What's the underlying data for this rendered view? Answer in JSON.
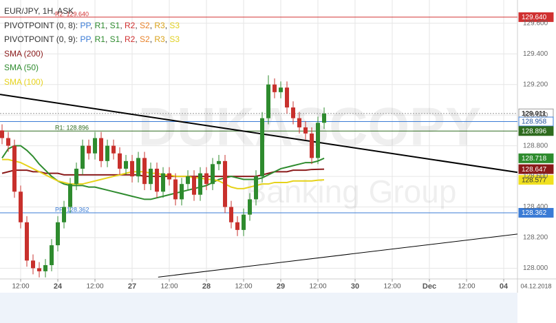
{
  "chart_data": {
    "type": "candlestick",
    "header": "EUR/JPY, 1H, ASK",
    "pivot_legends": [
      {
        "prefix": "PIVOTPOINT (0, 8):",
        "parts": [
          {
            "text": "PP",
            "color": "#3a7bd5"
          },
          {
            "text": "R1",
            "color": "#2e8b2e"
          },
          {
            "text": "S1",
            "color": "#2e8b2e"
          },
          {
            "text": "R2",
            "color": "#d03030"
          },
          {
            "text": "S2",
            "color": "#e8822a"
          },
          {
            "text": "R3",
            "color": "#d9a21a"
          },
          {
            "text": "S3",
            "color": "#e0d020"
          }
        ]
      },
      {
        "prefix": "PIVOTPOINT (0, 9):",
        "parts": [
          {
            "text": "PP",
            "color": "#3a7bd5"
          },
          {
            "text": "R1",
            "color": "#2e8b2e"
          },
          {
            "text": "S1",
            "color": "#2e8b2e"
          },
          {
            "text": "R2",
            "color": "#d03030"
          },
          {
            "text": "S2",
            "color": "#e8822a"
          },
          {
            "text": "R3",
            "color": "#d9a21a"
          },
          {
            "text": "S3",
            "color": "#e0d020"
          }
        ]
      }
    ],
    "watermark": [
      "DUKASCOPY",
      "Banking Group"
    ],
    "date_label": "04.12.2018",
    "up_color": "#2e8b2e",
    "down_color": "#c8302c",
    "grid": true,
    "xlim": [
      -6.67,
      160.44
    ],
    "ylim": [
      127.93,
      129.752
    ],
    "xticks": [
      {
        "value": 0,
        "label": "12:00"
      },
      {
        "value": 12,
        "label": "24"
      },
      {
        "value": 24,
        "label": "12:00"
      },
      {
        "value": 36,
        "label": "27"
      },
      {
        "value": 48,
        "label": "12:00"
      },
      {
        "value": 60,
        "label": "28"
      },
      {
        "value": 72,
        "label": "12:00"
      },
      {
        "value": 84,
        "label": "29"
      },
      {
        "value": 96,
        "label": "12:00"
      },
      {
        "value": 108,
        "label": "30"
      },
      {
        "value": 120,
        "label": "12:00"
      },
      {
        "value": 132,
        "label": "Dec"
      },
      {
        "value": 144,
        "label": "12:00"
      },
      {
        "value": 156,
        "label": "04"
      }
    ],
    "yticks": [
      {
        "value": 128.0,
        "label": "128.000"
      },
      {
        "value": 128.2,
        "label": "128.200"
      },
      {
        "value": 128.4,
        "label": "128.400"
      },
      {
        "value": 128.6,
        "label": "128.600"
      },
      {
        "value": 128.8,
        "label": "128.800"
      },
      {
        "value": 129.0,
        "label": "129.000"
      },
      {
        "value": 129.2,
        "label": "129.200"
      },
      {
        "value": 129.4,
        "label": "129.400"
      },
      {
        "value": 129.6,
        "label": "129.600"
      }
    ],
    "x": [
      -6,
      -4,
      -2,
      0,
      2,
      4,
      6,
      8,
      10,
      12,
      14,
      16,
      18,
      20,
      22,
      24,
      26,
      28,
      30,
      32,
      34,
      36,
      38,
      40,
      42,
      44,
      46,
      48,
      50,
      52,
      54,
      56,
      58,
      60,
      62,
      64,
      66,
      68,
      70,
      72,
      74,
      76,
      78,
      80,
      82,
      84,
      86,
      88,
      90,
      92,
      94,
      96,
      98
    ],
    "open": [
      128.9,
      128.85,
      128.8,
      128.5,
      128.3,
      128.05,
      128.0,
      127.98,
      128.02,
      128.15,
      128.3,
      128.4,
      128.55,
      128.65,
      128.8,
      128.75,
      128.85,
      128.7,
      128.8,
      128.75,
      128.65,
      128.7,
      128.6,
      128.72,
      128.55,
      128.65,
      128.5,
      128.62,
      128.58,
      128.45,
      128.55,
      128.6,
      128.48,
      128.62,
      128.55,
      128.68,
      128.7,
      128.4,
      128.3,
      128.25,
      128.35,
      128.45,
      128.6,
      128.98,
      129.2,
      129.15,
      129.18,
      129.05,
      128.98,
      128.92,
      128.88,
      128.72,
      128.95
    ],
    "high": [
      128.94,
      128.89,
      128.84,
      128.54,
      128.34,
      128.09,
      128.04,
      128.06,
      128.19,
      128.34,
      128.44,
      128.59,
      128.69,
      128.84,
      128.84,
      128.89,
      128.89,
      128.84,
      128.84,
      128.79,
      128.74,
      128.74,
      128.76,
      128.76,
      128.69,
      128.69,
      128.66,
      128.66,
      128.62,
      128.59,
      128.64,
      128.64,
      128.66,
      128.66,
      128.72,
      128.74,
      128.74,
      128.44,
      128.34,
      128.39,
      128.49,
      128.64,
      129.02,
      129.26,
      129.24,
      129.22,
      129.22,
      129.09,
      129.02,
      128.96,
      128.92,
      128.99,
      129.05
    ],
    "low": [
      128.81,
      128.76,
      128.46,
      128.26,
      128.01,
      127.96,
      127.94,
      127.94,
      127.98,
      128.11,
      128.26,
      128.36,
      128.51,
      128.61,
      128.71,
      128.71,
      128.66,
      128.66,
      128.71,
      128.61,
      128.61,
      128.56,
      128.56,
      128.51,
      128.51,
      128.46,
      128.46,
      128.54,
      128.41,
      128.41,
      128.51,
      128.44,
      128.44,
      128.51,
      128.51,
      128.64,
      128.36,
      128.26,
      128.21,
      128.21,
      128.31,
      128.41,
      128.56,
      128.94,
      129.11,
      129.11,
      129.01,
      128.94,
      128.88,
      128.84,
      128.68,
      128.68,
      128.91
    ],
    "close": [
      128.85,
      128.8,
      128.5,
      128.3,
      128.05,
      128.0,
      127.98,
      128.02,
      128.15,
      128.3,
      128.4,
      128.55,
      128.65,
      128.8,
      128.75,
      128.85,
      128.7,
      128.8,
      128.75,
      128.65,
      128.7,
      128.6,
      128.72,
      128.55,
      128.65,
      128.5,
      128.62,
      128.58,
      128.45,
      128.55,
      128.6,
      128.48,
      128.62,
      128.55,
      128.68,
      128.7,
      128.4,
      128.3,
      128.25,
      128.35,
      128.45,
      128.6,
      128.98,
      129.2,
      129.15,
      129.18,
      129.05,
      128.98,
      128.92,
      128.88,
      128.72,
      128.95,
      129.01
    ],
    "series": [
      {
        "name": "SMA (200)",
        "color": "#8b1a1a",
        "values": [
          128.62,
          128.63,
          128.64,
          128.64,
          128.64,
          128.63,
          128.63,
          128.62,
          128.62,
          128.62,
          128.61,
          128.61,
          128.61,
          128.61,
          128.61,
          128.61,
          128.61,
          128.61,
          128.61,
          128.61,
          128.61,
          128.61,
          128.61,
          128.6,
          128.6,
          128.6,
          128.6,
          128.6,
          128.6,
          128.6,
          128.6,
          128.6,
          128.6,
          128.6,
          128.6,
          128.6,
          128.6,
          128.6,
          128.6,
          128.6,
          128.6,
          128.6,
          128.61,
          128.62,
          128.63,
          128.63,
          128.63,
          128.64,
          128.64,
          128.64,
          128.645,
          128.646,
          128.647
        ]
      },
      {
        "name": "SMA (50)",
        "color": "#2e8b2e",
        "values": [
          128.72,
          128.78,
          128.8,
          128.8,
          128.77,
          128.73,
          128.68,
          128.64,
          128.6,
          128.57,
          128.55,
          128.54,
          128.54,
          128.54,
          128.53,
          128.53,
          128.52,
          128.51,
          128.5,
          128.49,
          128.48,
          128.47,
          128.46,
          128.45,
          128.45,
          128.46,
          128.47,
          128.48,
          128.49,
          128.5,
          128.51,
          128.52,
          128.53,
          128.54,
          128.56,
          128.58,
          128.59,
          128.6,
          128.59,
          128.58,
          128.58,
          128.58,
          128.59,
          128.61,
          128.63,
          128.65,
          128.66,
          128.67,
          128.68,
          128.69,
          128.69,
          128.7,
          128.718
        ]
      },
      {
        "name": "SMA (100)",
        "color": "#e6d21a",
        "values": [
          128.71,
          128.71,
          128.7,
          128.69,
          128.67,
          128.65,
          128.63,
          128.61,
          128.59,
          128.57,
          128.56,
          128.55,
          128.55,
          128.55,
          128.56,
          128.57,
          128.58,
          128.59,
          128.6,
          128.61,
          128.62,
          128.63,
          128.63,
          128.63,
          128.62,
          128.62,
          128.61,
          128.61,
          128.6,
          128.6,
          128.6,
          128.59,
          128.59,
          128.58,
          128.58,
          128.57,
          128.55,
          128.53,
          128.52,
          128.52,
          128.53,
          128.54,
          128.55,
          128.55,
          128.56,
          128.56,
          128.56,
          128.57,
          128.57,
          128.57,
          128.57,
          128.575,
          128.577
        ]
      }
    ],
    "levels": [
      {
        "value": 129.64,
        "label": "129.640",
        "tag": "R2: 129.640",
        "color": "#d03030",
        "text_color": "#ffffff",
        "line": true,
        "dashed": false
      },
      {
        "value": 129.011,
        "label": "129.011",
        "color": "#999999",
        "text_color": "#333333",
        "line": true,
        "dashed": true
      },
      {
        "value": 128.958,
        "label": "128.958",
        "color": "#3a7bd5",
        "text_color": "#1d4f9a",
        "line": true,
        "dashed": false
      },
      {
        "value": 128.896,
        "label": "128.896",
        "tag": "R1: 128.896",
        "color": "#2e6b1e",
        "text_color": "#ffffff",
        "line": true,
        "dashed": false
      },
      {
        "value": 128.718,
        "label": "128.718",
        "color": "#2e8b2e",
        "text_color": "#ffffff",
        "line": false,
        "dashed": false
      },
      {
        "value": 128.647,
        "label": "128.647",
        "color": "#8b1a1a",
        "text_color": "#ffffff",
        "line": false,
        "dashed": false
      },
      {
        "value": 128.577,
        "label": "128.577",
        "color": "#f0e020",
        "text_color": "#333333",
        "line": false,
        "dashed": false
      },
      {
        "value": 128.362,
        "label": "128.362",
        "tag": "PP: 128.362",
        "color": "#3a7bd5",
        "text_color": "#ffffff",
        "line": true,
        "dashed": false
      }
    ],
    "trendlines": [
      {
        "x": [
          -6.67,
          160.44
        ],
        "values": [
          129.135,
          128.626
        ],
        "width": 2
      },
      {
        "x": [
          44.4,
          160.44
        ],
        "values": [
          127.942,
          128.223
        ],
        "width": 1
      }
    ]
  }
}
